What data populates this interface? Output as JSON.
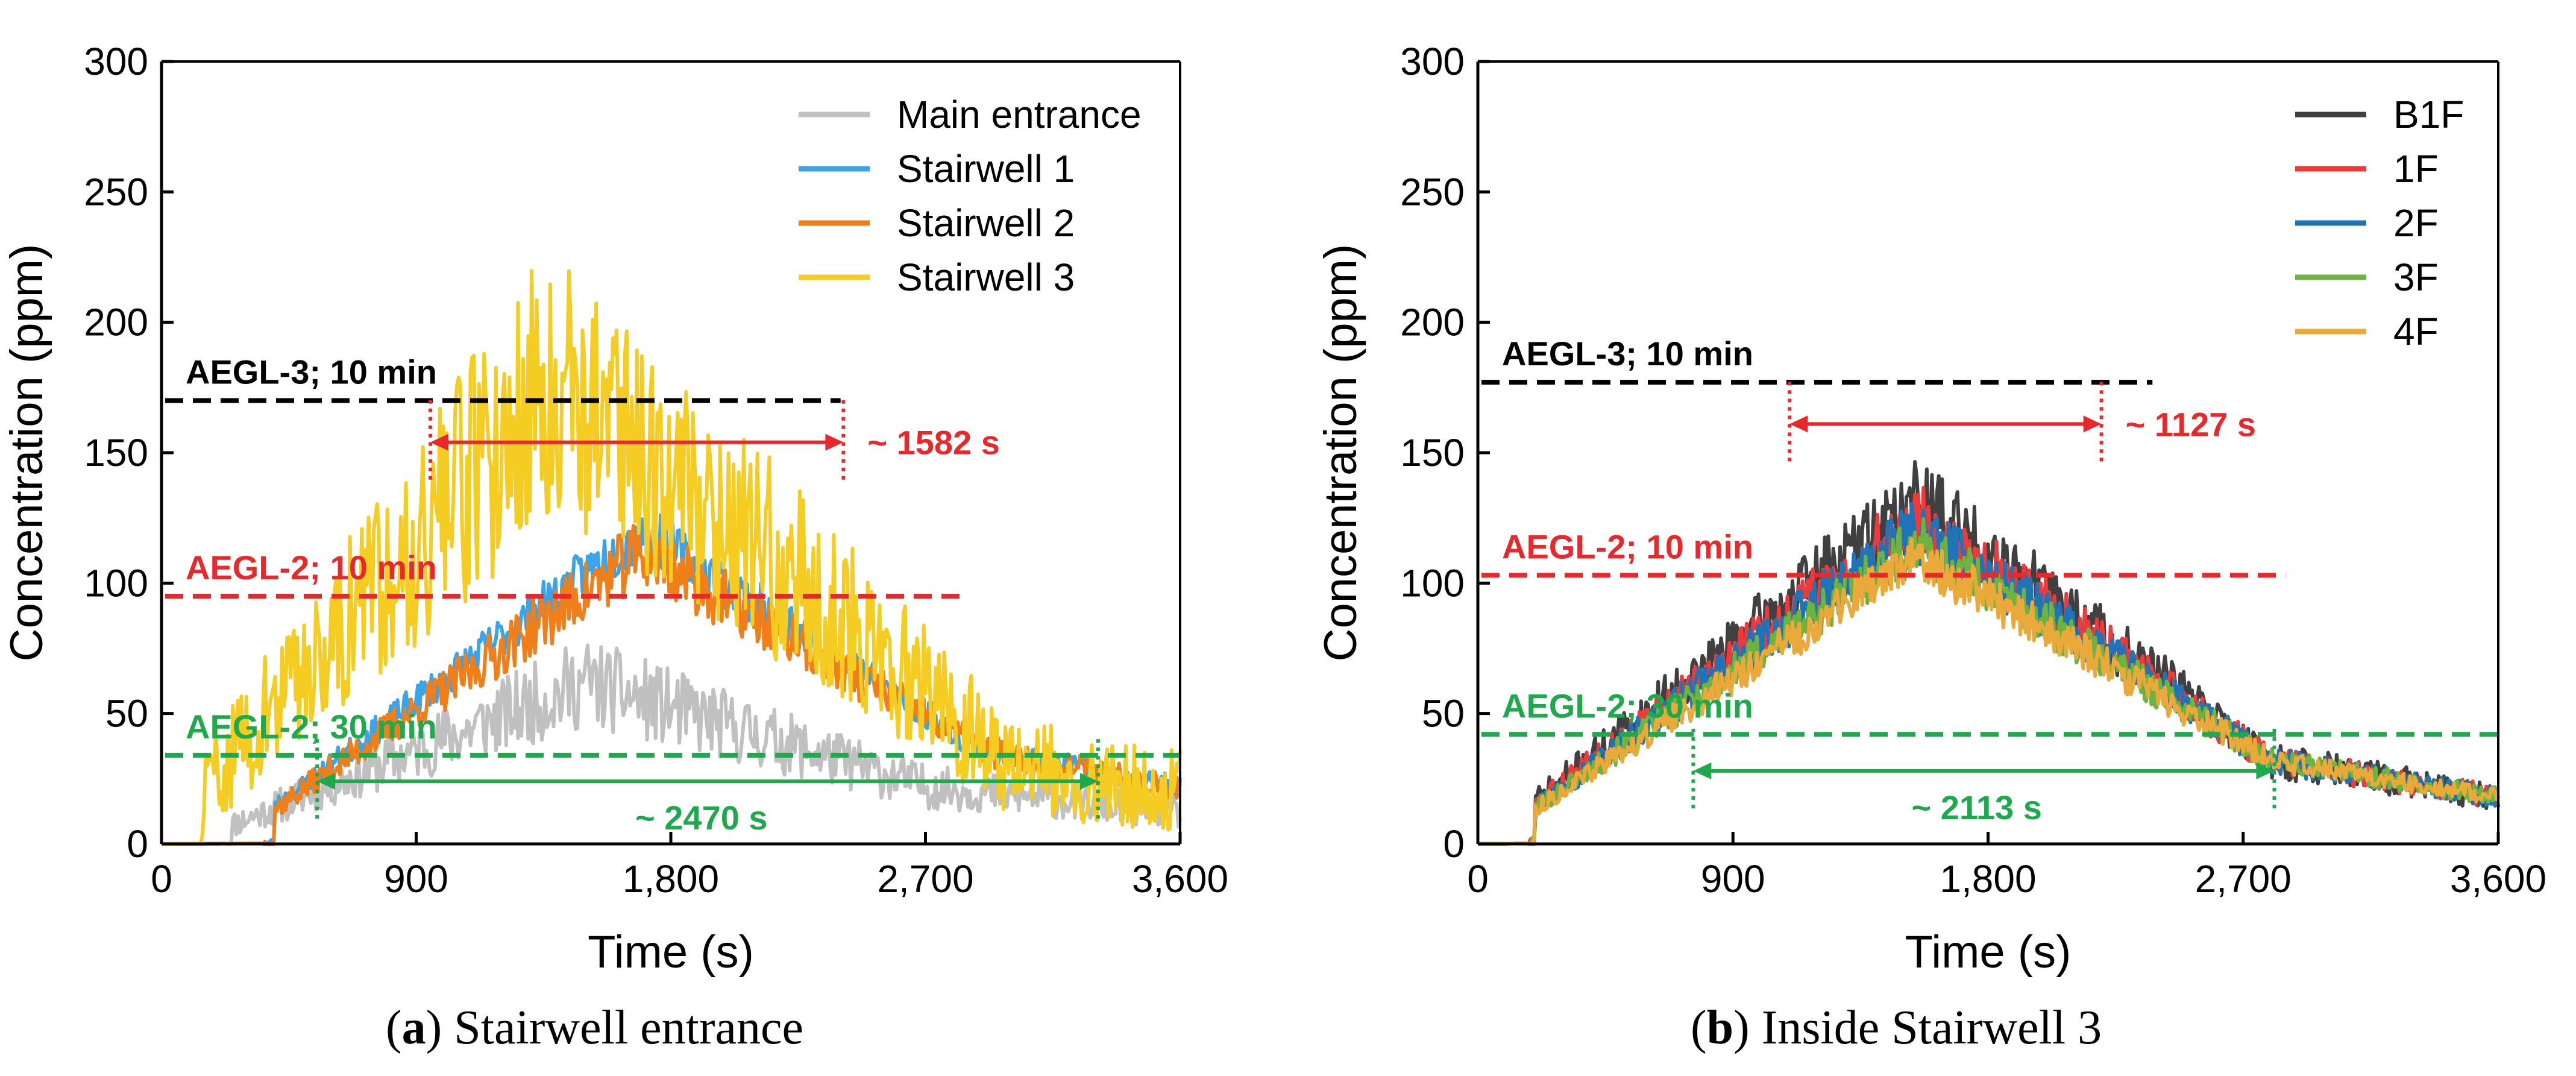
{
  "captions": [
    {
      "letter": "a",
      "text": "Stairwell entrance"
    },
    {
      "letter": "b",
      "text": "Inside Stairwell 3"
    }
  ],
  "chart_data": [
    {
      "type": "line",
      "title": "",
      "xlabel": "Time (s)",
      "ylabel": "Concentration (ppm)",
      "xlim": [
        0,
        3600
      ],
      "ylim": [
        0,
        300
      ],
      "xticks": [
        "0",
        "900",
        "1,800",
        "2,700",
        "3,600"
      ],
      "yticks": [
        "0",
        "50",
        "100",
        "150",
        "200",
        "250",
        "300"
      ],
      "legend_position": "top-right",
      "series": [
        {
          "name": "Main entrance",
          "color": "#c0c0c0",
          "profile": {
            "start": 250,
            "rise_end": 1500,
            "peak": 62,
            "fall_end": 2700,
            "tail": 22,
            "end": 12,
            "noise": 14,
            "seed": 11
          }
        },
        {
          "name": "Stairwell 1",
          "color": "#3ba3e8",
          "profile": {
            "start": 400,
            "rise_end": 1700,
            "peak": 120,
            "fall_end": 2900,
            "tail": 36,
            "end": 22,
            "noise": 9,
            "seed": 23
          }
        },
        {
          "name": "Stairwell 2",
          "color": "#f07f1a",
          "profile": {
            "start": 400,
            "rise_end": 1700,
            "peak": 112,
            "fall_end": 2900,
            "tail": 36,
            "end": 22,
            "noise": 11,
            "seed": 37
          }
        },
        {
          "name": "Stairwell 3",
          "color": "#f5cc21",
          "profile": {
            "start": 150,
            "rise_end": 1400,
            "peak": 180,
            "fall_end": 3000,
            "tail": 30,
            "end": 20,
            "noise": 45,
            "seed": 59
          }
        }
      ],
      "thresholds": [
        {
          "label": "AEGL-3; 10 min",
          "value": 170,
          "x_end": 2400,
          "color": "#000000"
        },
        {
          "label": "AEGL-2; 10 min",
          "value": 95,
          "x_end": 2850,
          "color": "#e8282b"
        },
        {
          "label": "AEGL-2; 30 min",
          "value": 34,
          "x_end": 3600,
          "color": "#1eaa4c"
        }
      ],
      "durations": [
        {
          "label": "~ 1582 s",
          "x_start": 950,
          "x_end": 2410,
          "y": 154,
          "color": "#e8282b"
        },
        {
          "label": "~ 2470 s",
          "x_start": 550,
          "x_end": 3310,
          "y": 24,
          "color": "#1eaa4c"
        }
      ]
    },
    {
      "type": "line",
      "title": "",
      "xlabel": "Time (s)",
      "ylabel": "Concentration (ppm)",
      "xlim": [
        0,
        3600
      ],
      "ylim": [
        0,
        300
      ],
      "xticks": [
        "0",
        "900",
        "1,800",
        "2,700",
        "3,600"
      ],
      "yticks": [
        "0",
        "50",
        "100",
        "150",
        "200",
        "250",
        "300"
      ],
      "legend_position": "top-right",
      "series": [
        {
          "name": "B1F",
          "color": "#404040",
          "profile": {
            "start": 200,
            "rise_end": 1550,
            "peak": 132,
            "fall_end": 2800,
            "tail": 32,
            "end": 18,
            "noise": 14,
            "seed": 71
          }
        },
        {
          "name": "1F",
          "color": "#ee3a3a",
          "profile": {
            "start": 200,
            "rise_end": 1550,
            "peak": 125,
            "fall_end": 2800,
            "tail": 32,
            "end": 18,
            "noise": 11,
            "seed": 83
          }
        },
        {
          "name": "2F",
          "color": "#1f74b8",
          "profile": {
            "start": 200,
            "rise_end": 1550,
            "peak": 120,
            "fall_end": 2800,
            "tail": 32,
            "end": 18,
            "noise": 10,
            "seed": 97
          }
        },
        {
          "name": "3F",
          "color": "#6cb33f",
          "profile": {
            "start": 200,
            "rise_end": 1550,
            "peak": 115,
            "fall_end": 2800,
            "tail": 32,
            "end": 18,
            "noise": 9,
            "seed": 101
          }
        },
        {
          "name": "4F",
          "color": "#eba93a",
          "profile": {
            "start": 200,
            "rise_end": 1550,
            "peak": 110,
            "fall_end": 2800,
            "tail": 32,
            "end": 18,
            "noise": 8,
            "seed": 113
          }
        }
      ],
      "thresholds": [
        {
          "label": "AEGL-3; 10 min",
          "value": 177,
          "x_end": 2380,
          "color": "#000000"
        },
        {
          "label": "AEGL-2; 10 min",
          "value": 103,
          "x_end": 2850,
          "color": "#e8282b"
        },
        {
          "label": "AEGL-2; 30 min",
          "value": 42,
          "x_end": 3600,
          "color": "#1eaa4c"
        }
      ],
      "durations": [
        {
          "label": "~ 1127 s",
          "x_start": 1100,
          "x_end": 2200,
          "y": 161,
          "color": "#e8282b"
        },
        {
          "label": "~ 2113 s",
          "x_start": 760,
          "x_end": 2810,
          "y": 28,
          "color": "#1eaa4c"
        }
      ]
    }
  ]
}
